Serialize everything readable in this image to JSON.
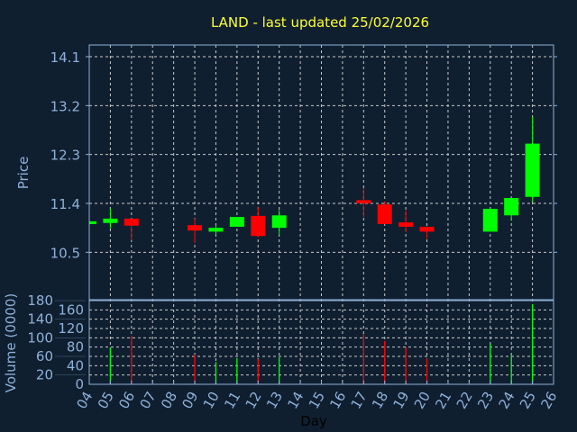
{
  "chart_data": {
    "type": "candlestick",
    "title": "LAND - last updated 25/02/2026",
    "xlabel": "Day",
    "ylabel": "Price",
    "volume_ylabel": "Volume (0000)",
    "price_ylim": [
      10.0,
      14.3
    ],
    "price_ticks": [
      "10.5",
      "11.4",
      "12.3",
      "13.2",
      "14.1"
    ],
    "volume_ylim": [
      0,
      180
    ],
    "volume_ticks": [
      "0",
      "20",
      "40",
      "60",
      "80",
      "100",
      "120",
      "140",
      "160",
      "180"
    ],
    "x_ticks": [
      "04",
      "05",
      "06",
      "07",
      "08",
      "09",
      "10",
      "11",
      "12",
      "13",
      "14",
      "15",
      "16",
      "17",
      "18",
      "19",
      "20",
      "21",
      "22",
      "23",
      "24",
      "25",
      "26"
    ],
    "grid": true,
    "colors": {
      "up": "#00ff00",
      "down": "#ff0000",
      "title": "#ffff33",
      "axis": "#8fb0d8",
      "grid": "#c8c8c8",
      "background": "#0f1f30"
    },
    "candles": [
      {
        "day": 4,
        "open": 11.02,
        "high": 11.07,
        "low": 11.02,
        "close": 11.07,
        "volume": 0
      },
      {
        "day": 5,
        "open": 11.04,
        "high": 11.3,
        "low": 10.94,
        "close": 11.12,
        "volume": 79
      },
      {
        "day": 6,
        "open": 11.12,
        "high": 11.12,
        "low": 10.72,
        "close": 10.99,
        "volume": 104
      },
      {
        "day": 9,
        "open": 11.0,
        "high": 11.12,
        "low": 10.67,
        "close": 10.9,
        "volume": 64
      },
      {
        "day": 10,
        "open": 10.88,
        "high": 11.0,
        "low": 10.83,
        "close": 10.95,
        "volume": 48
      },
      {
        "day": 11,
        "open": 10.97,
        "high": 11.15,
        "low": 10.97,
        "close": 11.15,
        "volume": 56
      },
      {
        "day": 12,
        "open": 11.17,
        "high": 11.33,
        "low": 10.78,
        "close": 10.8,
        "volume": 54
      },
      {
        "day": 13,
        "open": 10.95,
        "high": 11.28,
        "low": 10.82,
        "close": 11.18,
        "volume": 58
      },
      {
        "day": 17,
        "open": 11.46,
        "high": 11.68,
        "low": 11.15,
        "close": 11.4,
        "volume": 108
      },
      {
        "day": 18,
        "open": 11.38,
        "high": 11.43,
        "low": 11.02,
        "close": 11.02,
        "volume": 93
      },
      {
        "day": 19,
        "open": 11.05,
        "high": 11.27,
        "low": 10.87,
        "close": 10.97,
        "volume": 79
      },
      {
        "day": 20,
        "open": 10.97,
        "high": 10.97,
        "low": 10.75,
        "close": 10.88,
        "volume": 56
      },
      {
        "day": 23,
        "open": 10.88,
        "high": 11.31,
        "low": 10.88,
        "close": 11.3,
        "volume": 87
      },
      {
        "day": 24,
        "open": 11.18,
        "high": 11.5,
        "low": 11.08,
        "close": 11.5,
        "volume": 62
      },
      {
        "day": 25,
        "open": 11.52,
        "high": 12.99,
        "low": 11.43,
        "close": 12.5,
        "volume": 172
      }
    ]
  }
}
